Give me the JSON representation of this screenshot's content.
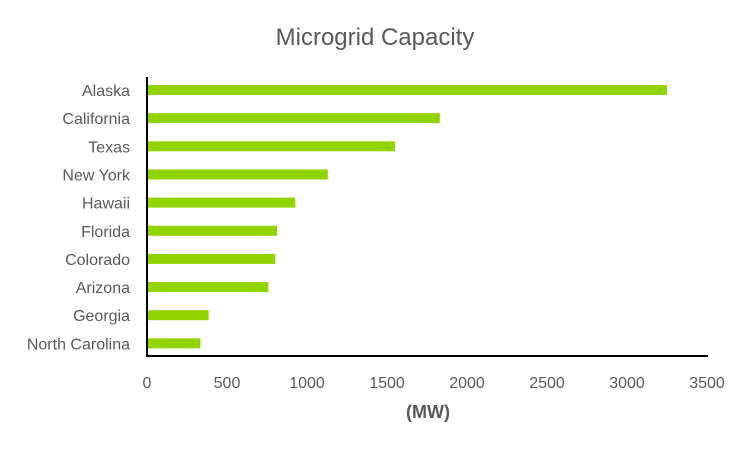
{
  "chart_data": {
    "type": "bar",
    "orientation": "horizontal",
    "title": "Microgrid Capacity",
    "xlabel": "(MW)",
    "ylabel": "",
    "categories": [
      "Alaska",
      "California",
      "Texas",
      "New York",
      "Hawaii",
      "Florida",
      "Colorado",
      "Arizona",
      "Georgia",
      "North Carolina"
    ],
    "values": [
      3250,
      1830,
      1550,
      1130,
      926,
      813,
      802,
      758,
      385,
      334
    ],
    "xlim": [
      0,
      3500
    ],
    "xticks": [
      "0",
      "500",
      "1000",
      "1500",
      "2000",
      "2500",
      "3000",
      "3500"
    ],
    "grid": false,
    "legend": "none",
    "bar_color": "#92D400"
  }
}
